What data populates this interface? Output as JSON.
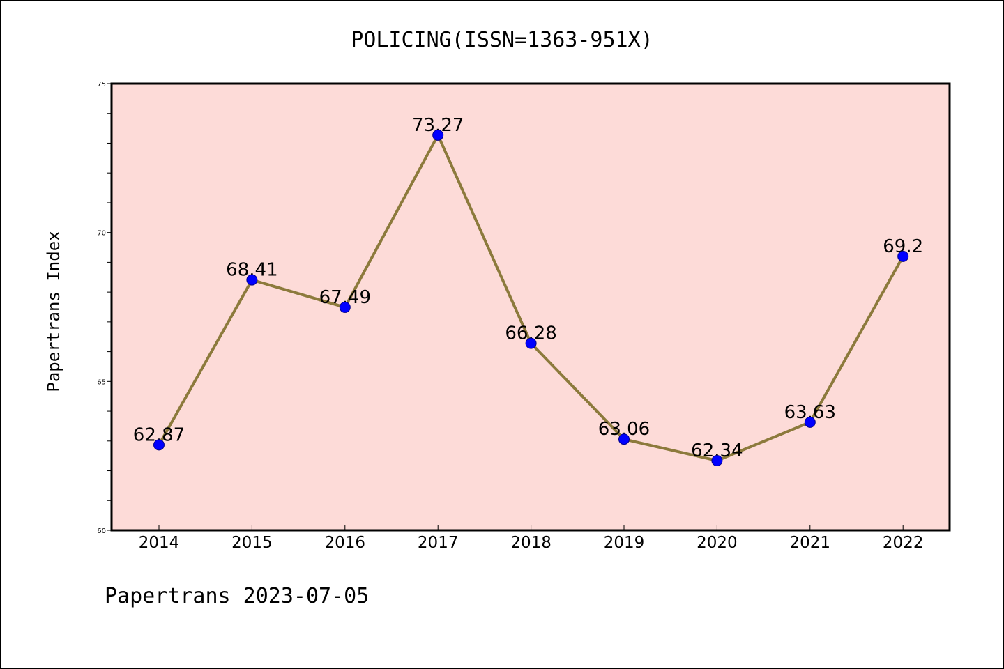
{
  "chart_data": {
    "type": "line",
    "title": "POLICING(ISSN=1363-951X)",
    "xlabel": "",
    "ylabel": "Papertrans Index",
    "categories": [
      "2014",
      "2015",
      "2016",
      "2017",
      "2018",
      "2019",
      "2020",
      "2021",
      "2022"
    ],
    "series": [
      {
        "values": [
          62.87,
          68.41,
          67.49,
          73.27,
          66.28,
          63.06,
          62.34,
          63.63,
          69.2
        ],
        "data_labels": [
          "62.87",
          "68.41",
          "67.49",
          "73.27",
          "66.28",
          "63.06",
          "62.34",
          "63.63",
          "69.2"
        ]
      }
    ],
    "ylim": [
      60,
      75
    ],
    "yticks": [
      "60",
      "65",
      "70",
      "75"
    ],
    "grid": false,
    "legend": "none",
    "colors": {
      "plot_background": "#fddbd8",
      "line": "#8c7a3c",
      "marker": "#0000ff"
    }
  },
  "footer": {
    "text": "Papertrans 2023-07-05"
  }
}
